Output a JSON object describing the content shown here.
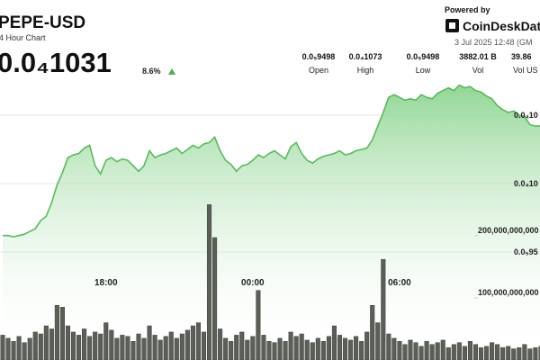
{
  "header": {
    "title": "PEPE-USD",
    "subtitle": "4 Hour Chart",
    "price": "0.0₄1031",
    "change": "8.6%",
    "powered_by": "Powered by",
    "brand": "CoinDeskDat",
    "timestamp": "3 Jul 2025 12:48 (GM"
  },
  "stats": [
    {
      "value": "0.0₅9498",
      "label": "Open"
    },
    {
      "value": "0.0₄1073",
      "label": "High"
    },
    {
      "value": "0.0₅9498",
      "label": "Low"
    },
    {
      "value": "3882.01 B",
      "label": "Vol"
    },
    {
      "value": "39.86",
      "label": "Vol US"
    }
  ],
  "chart_data": {
    "type": "line",
    "categories": [
      null,
      null,
      null,
      null,
      null,
      null,
      null,
      null,
      null,
      null,
      null,
      null,
      null,
      null,
      null,
      null,
      null,
      null,
      null,
      "18:00",
      null,
      null,
      null,
      null,
      null,
      null,
      null,
      null,
      null,
      null,
      null,
      null,
      null,
      null,
      null,
      null,
      null,
      null,
      null,
      null,
      null,
      null,
      null,
      null,
      null,
      null,
      "00:00",
      null,
      null,
      null,
      null,
      null,
      null,
      null,
      null,
      null,
      null,
      null,
      null,
      null,
      null,
      null,
      null,
      null,
      null,
      null,
      null,
      null,
      null,
      null,
      null,
      null,
      null,
      "06:00",
      null,
      null,
      null,
      null,
      null,
      null,
      null,
      null,
      null,
      null,
      null,
      null,
      null,
      null,
      null,
      null,
      null,
      null,
      null,
      null,
      null,
      null,
      null,
      null,
      null,
      null
    ],
    "series": [
      {
        "color": "#5cb860",
        "values": [
          9.62e-06,
          9.62e-06,
          9.61e-06,
          9.62e-06,
          9.63e-06,
          9.65e-06,
          9.67e-06,
          9.73e-06,
          9.76e-06,
          9.86e-06,
          9.99e-06,
          1.008e-05,
          1.019e-05,
          1.021e-05,
          1.022e-05,
          1.026e-05,
          1.028e-05,
          1.013e-05,
          1.007e-05,
          1.017e-05,
          1.019e-05,
          1.016e-05,
          1.018e-05,
          1.017e-05,
          1.013e-05,
          1.009e-05,
          1.013e-05,
          1.024e-05,
          1.019e-05,
          1.021e-05,
          1.022e-05,
          1.024e-05,
          1.026e-05,
          1.022e-05,
          1.025e-05,
          1.028e-05,
          1.026e-05,
          1.029e-05,
          1.03e-05,
          1.034e-05,
          1.024e-05,
          1.017e-05,
          1.014e-05,
          1.009e-05,
          1.013e-05,
          1.014e-05,
          1.017e-05,
          1.021e-05,
          1.019e-05,
          1.022e-05,
          1.024e-05,
          1.021e-05,
          1.018e-05,
          1.027e-05,
          1.03e-05,
          1.022e-05,
          1.017e-05,
          1.015e-05,
          1.018e-05,
          1.02e-05,
          1.021e-05,
          1.022e-05,
          1.024e-05,
          1.021e-05,
          1.022e-05,
          1.024e-05,
          1.025e-05,
          1.026e-05,
          1.032e-05,
          1.042e-05,
          1.052e-05,
          1.063e-05,
          1.065e-05,
          1.063e-05,
          1.061e-05,
          1.062e-05,
          1.061e-05,
          1.065e-05,
          1.063e-05,
          1.062e-05,
          1.066e-05,
          1.068e-05,
          1.07e-05,
          1.068e-05,
          1.072e-05,
          1.07e-05,
          1.071e-05,
          1.068e-05,
          1.067e-05,
          1.064e-05,
          1.062e-05,
          1.057e-05,
          1.054e-05,
          1.052e-05,
          1.053e-05,
          1.05e-05,
          1.049e-05,
          1.043e-05,
          1.042e-05,
          1.042e-05
        ]
      },
      {
        "color": "#5b5f58",
        "axis": "y2",
        "values": [
          40000000000,
          35000000000,
          30000000000,
          38000000000,
          28000000000,
          35000000000,
          45000000000,
          42000000000,
          55000000000,
          50000000000,
          88000000000,
          85000000000,
          55000000000,
          45000000000,
          40000000000,
          50000000000,
          38000000000,
          45000000000,
          42000000000,
          60000000000,
          48000000000,
          35000000000,
          40000000000,
          38000000000,
          30000000000,
          42000000000,
          35000000000,
          55000000000,
          40000000000,
          32000000000,
          38000000000,
          45000000000,
          35000000000,
          42000000000,
          48000000000,
          55000000000,
          60000000000,
          45000000000,
          250000000000,
          197000000000,
          50000000000,
          35000000000,
          30000000000,
          40000000000,
          45000000000,
          32000000000,
          38000000000,
          112000000000,
          40000000000,
          30000000000,
          28000000000,
          35000000000,
          30000000000,
          45000000000,
          38000000000,
          42000000000,
          32000000000,
          28000000000,
          35000000000,
          30000000000,
          38000000000,
          55000000000,
          40000000000,
          35000000000,
          32000000000,
          38000000000,
          30000000000,
          45000000000,
          88000000000,
          60000000000,
          162000000000,
          42000000000,
          35000000000,
          30000000000,
          25000000000,
          32000000000,
          28000000000,
          22000000000,
          30000000000,
          25000000000,
          28000000000,
          32000000000,
          20000000000,
          25000000000,
          28000000000,
          22000000000,
          30000000000,
          25000000000,
          20000000000,
          22000000000,
          28000000000,
          25000000000,
          20000000000,
          22000000000,
          18000000000,
          20000000000,
          25000000000,
          18000000000,
          20000000000,
          22000000000
        ]
      }
    ],
    "ylim": [
      8.71e-06,
      1.075e-05
    ],
    "yticks": [
      {
        "value": 1.05e-05,
        "label": "0.0₄10"
      },
      {
        "value": 1e-05,
        "label": "0.0₄10"
      },
      {
        "value": 9.5e-06,
        "label": "0.0₅95"
      }
    ],
    "y2lim": [
      0,
      449000000000
    ],
    "y2ticks": [
      {
        "value": 200000000000,
        "label": "200,000,000,000"
      },
      {
        "value": 100000000000,
        "label": "100,000,000,000"
      }
    ],
    "grid": true
  }
}
